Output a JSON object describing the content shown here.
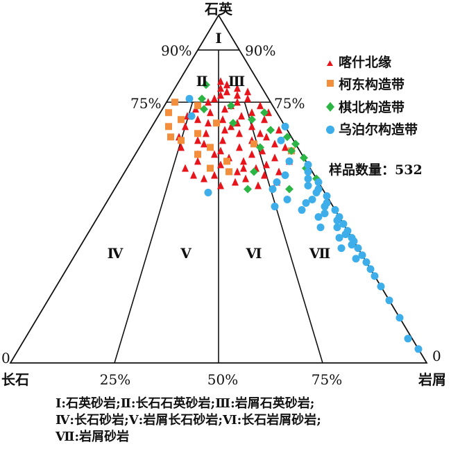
{
  "chart_data": {
    "type": "ternary-scatter",
    "apex_labels": {
      "top": "石英",
      "left": "长石",
      "right": "岩屑"
    },
    "side_ticks": {
      "upper": "90%",
      "middle": "75%"
    },
    "bottom_ticks": [
      "0",
      "25%",
      "50%",
      "75%",
      "0"
    ],
    "zone_labels": [
      "Ⅰ",
      "Ⅱ",
      "Ⅲ",
      "Ⅳ",
      "Ⅴ",
      "Ⅵ",
      "Ⅶ"
    ],
    "sample_count_text": "样品数量：532",
    "series": [
      {
        "name": "喀什北缘",
        "marker": "triangle",
        "color": "#e8141b",
        "points": [
          [
            81,
            9,
            10
          ],
          [
            80,
            8,
            12
          ],
          [
            79,
            10,
            11
          ],
          [
            79,
            6,
            15
          ],
          [
            78,
            9,
            13
          ],
          [
            78,
            4,
            18
          ],
          [
            77,
            7,
            16
          ],
          [
            77,
            11,
            12
          ],
          [
            76,
            5,
            19
          ],
          [
            76,
            13,
            11
          ],
          [
            75,
            8,
            17
          ],
          [
            75,
            15,
            10
          ],
          [
            74,
            10,
            16
          ],
          [
            74,
            3,
            23
          ],
          [
            73,
            12,
            15
          ],
          [
            73,
            19,
            8
          ],
          [
            72,
            6,
            22
          ],
          [
            72,
            16,
            12
          ],
          [
            71,
            9,
            20
          ],
          [
            71,
            22,
            7
          ],
          [
            70,
            14,
            16
          ],
          [
            70,
            4,
            26
          ],
          [
            69,
            11,
            20
          ],
          [
            69,
            18,
            13
          ],
          [
            68,
            8,
            24
          ],
          [
            68,
            24,
            8
          ],
          [
            67,
            15,
            18
          ],
          [
            67,
            2,
            31
          ],
          [
            66,
            12,
            22
          ],
          [
            66,
            20,
            14
          ],
          [
            65,
            6,
            29
          ],
          [
            65,
            27,
            8
          ],
          [
            64,
            17,
            19
          ],
          [
            64,
            10,
            26
          ],
          [
            63,
            22,
            15
          ],
          [
            63,
            5,
            32
          ],
          [
            62,
            14,
            24
          ],
          [
            62,
            28,
            10
          ],
          [
            61,
            9,
            30
          ],
          [
            61,
            19,
            20
          ],
          [
            60,
            12,
            28
          ],
          [
            60,
            25,
            15
          ],
          [
            59,
            7,
            34
          ],
          [
            59,
            18,
            23
          ],
          [
            58,
            15,
            27
          ],
          [
            58,
            26,
            16
          ],
          [
            57,
            10,
            33
          ],
          [
            57,
            21,
            22
          ],
          [
            56,
            13,
            31
          ],
          [
            56,
            30,
            14
          ],
          [
            55,
            18,
            27
          ],
          [
            55,
            8,
            37
          ],
          [
            54,
            24,
            22
          ],
          [
            54,
            12,
            34
          ],
          [
            53,
            17,
            30
          ],
          [
            53,
            27,
            20
          ],
          [
            52,
            20,
            28
          ],
          [
            52,
            10,
            38
          ],
          [
            51,
            15,
            34
          ],
          [
            51,
            24,
            25
          ],
          [
            72,
            2,
            26
          ],
          [
            70,
            20,
            10
          ],
          [
            68,
            13,
            19
          ],
          [
            66,
            7,
            27
          ],
          [
            64,
            23,
            13
          ],
          [
            62,
            3,
            35
          ],
          [
            60,
            21,
            19
          ],
          [
            58,
            4,
            38
          ],
          [
            56,
            16,
            28
          ],
          [
            54,
            29,
            17
          ]
        ]
      },
      {
        "name": "柯东构造带",
        "marker": "square",
        "color": "#f28e3c",
        "points": [
          [
            75,
            23,
            2
          ],
          [
            72,
            26,
            2
          ],
          [
            74,
            18,
            8
          ],
          [
            70,
            24,
            6
          ],
          [
            68,
            28,
            4
          ],
          [
            66,
            22,
            12
          ],
          [
            64,
            27,
            9
          ],
          [
            62,
            21,
            17
          ],
          [
            60,
            25,
            15
          ],
          [
            58,
            19,
            23
          ],
          [
            56,
            24,
            20
          ],
          [
            55,
            20,
            25
          ],
          [
            61,
            2,
            37
          ],
          [
            63,
            10,
            27
          ],
          [
            69,
            16,
            15
          ],
          [
            65,
            29,
            6
          ]
        ]
      },
      {
        "name": "棋北构造带",
        "marker": "diamond",
        "color": "#2bb544",
        "points": [
          [
            80,
            13,
            7
          ],
          [
            76,
            16,
            8
          ],
          [
            74,
            10,
            16
          ],
          [
            72,
            3,
            25
          ],
          [
            70,
            7,
            23
          ],
          [
            67,
            4,
            29
          ],
          [
            65,
            1,
            34
          ],
          [
            63,
            0,
            37
          ],
          [
            61,
            2,
            37
          ],
          [
            59,
            0,
            41
          ],
          [
            56,
            1,
            43
          ],
          [
            53,
            0,
            47
          ],
          [
            50,
            8,
            42
          ],
          [
            50,
            18,
            32
          ],
          [
            55,
            14,
            31
          ],
          [
            62,
            9,
            29
          ],
          [
            69,
            12,
            19
          ],
          [
            73,
            17,
            10
          ]
        ]
      },
      {
        "name": "乌泊尔构造带",
        "marker": "circle",
        "color": "#3daee9",
        "points": [
          [
            76,
            19,
            5
          ],
          [
            71,
            21,
            8
          ],
          [
            68,
            0,
            32
          ],
          [
            64,
            3,
            33
          ],
          [
            58,
            4,
            38
          ],
          [
            57,
            0,
            43
          ],
          [
            55,
            1,
            44
          ],
          [
            53,
            2,
            45
          ],
          [
            52,
            0,
            48
          ],
          [
            51,
            3,
            46
          ],
          [
            50,
            1,
            49
          ],
          [
            49,
            2,
            49
          ],
          [
            48,
            0,
            52
          ],
          [
            47,
            4,
            49
          ],
          [
            46,
            1,
            53
          ],
          [
            45,
            2,
            53
          ],
          [
            44,
            0,
            56
          ],
          [
            43,
            3,
            54
          ],
          [
            42,
            0,
            58
          ],
          [
            41,
            1,
            58
          ],
          [
            40,
            0,
            60
          ],
          [
            39,
            2,
            59
          ],
          [
            38,
            0,
            62
          ],
          [
            37,
            1,
            62
          ],
          [
            36,
            0,
            64
          ],
          [
            35,
            0,
            65
          ],
          [
            34,
            1,
            65
          ],
          [
            33,
            0,
            67
          ],
          [
            31,
            0,
            69
          ],
          [
            29,
            0,
            71
          ],
          [
            27,
            0,
            73
          ],
          [
            25,
            0,
            75
          ],
          [
            22,
            0,
            78
          ],
          [
            49,
            28,
            23
          ],
          [
            52,
            10,
            38
          ],
          [
            54,
            7,
            39
          ],
          [
            50,
            12,
            38
          ],
          [
            46,
            6,
            48
          ],
          [
            44,
            8,
            48
          ],
          [
            42,
            5,
            53
          ],
          [
            39,
            6,
            55
          ],
          [
            36,
            3,
            61
          ],
          [
            33,
            4,
            63
          ],
          [
            30,
            2,
            68
          ],
          [
            18,
            0,
            82
          ],
          [
            13,
            0,
            87
          ],
          [
            7,
            1,
            92
          ],
          [
            4,
            0,
            96
          ],
          [
            47,
            10,
            43
          ],
          [
            45,
            14,
            41
          ]
        ]
      }
    ]
  },
  "legend": {
    "items": [
      {
        "label": "喀什北缘",
        "color": "#e8141b",
        "icon": "triangle-marker"
      },
      {
        "label": "柯东构造带",
        "color": "#f28e3c",
        "icon": "square-marker"
      },
      {
        "label": "棋北构造带",
        "color": "#2bb544",
        "icon": "diamond-marker"
      },
      {
        "label": "乌泊尔构造带",
        "color": "#3daee9",
        "icon": "circle-marker"
      }
    ]
  },
  "caption": {
    "line1": "Ⅰ:石英砂岩;Ⅱ:长石石英砂岩;Ⅲ:岩屑石英砂岩;",
    "line2": "Ⅳ:长石砂岩;Ⅴ:岩屑长石砂岩;Ⅵ:长石岩屑砂岩;",
    "line3": "Ⅶ:岩屑砂岩"
  }
}
